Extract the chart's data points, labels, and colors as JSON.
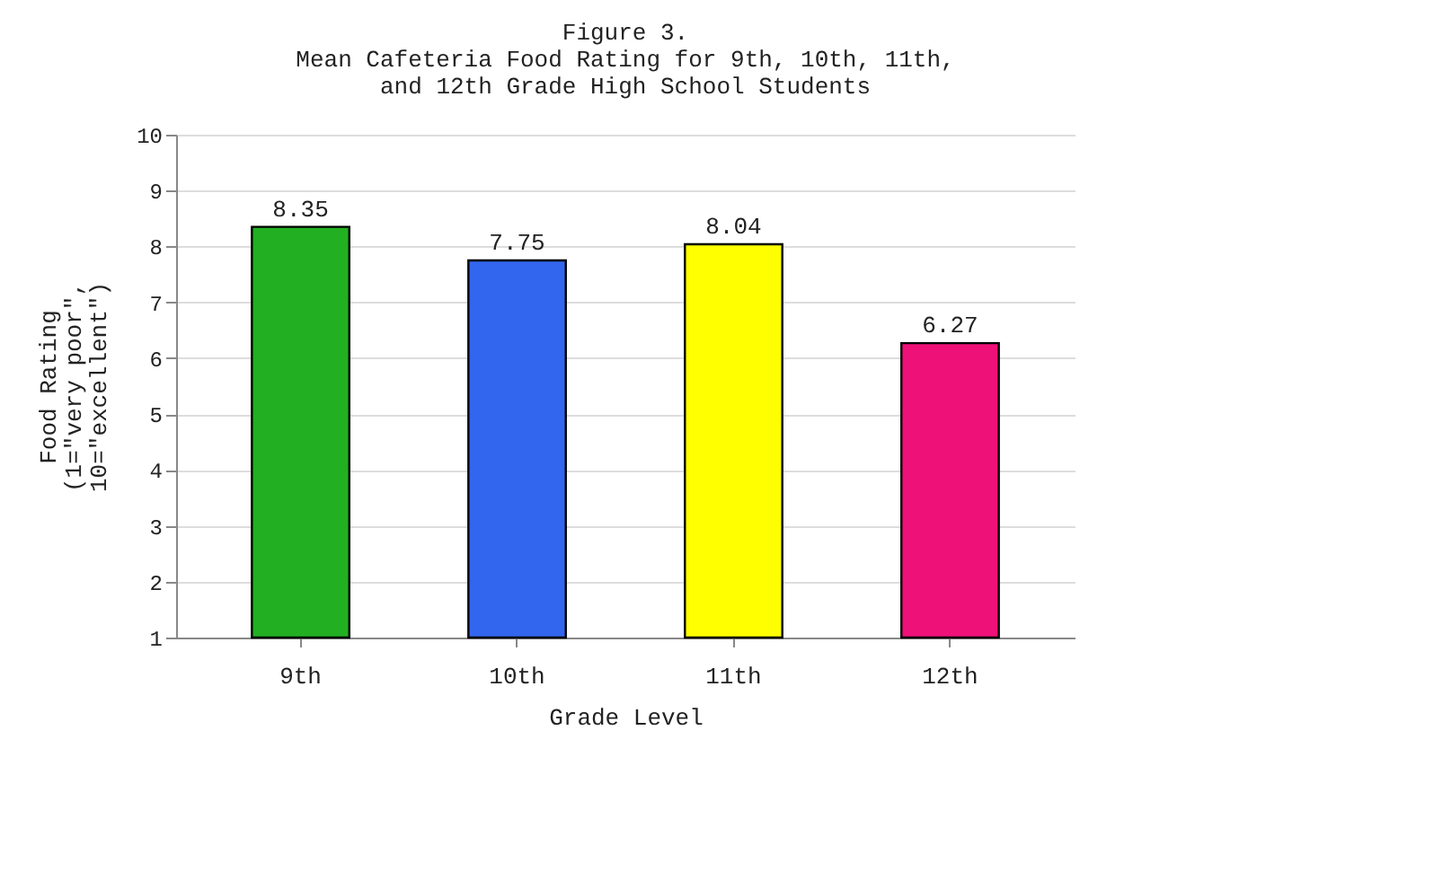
{
  "chart_data": {
    "type": "bar",
    "title": "Figure 3.\nMean Cafeteria Food Rating for 9th, 10th, 11th,\nand 12th Grade High School Students",
    "xlabel": "Grade Level",
    "ylabel": "Food Rating\n(1=\"very poor\",\n10=\"excellent\")",
    "categories": [
      "9th",
      "10th",
      "11th",
      "12th"
    ],
    "values": [
      8.35,
      7.75,
      8.04,
      6.27
    ],
    "colors": [
      "#22b022",
      "#3366ee",
      "#ffff00",
      "#ee1177"
    ],
    "ylim": [
      1,
      10
    ],
    "yticks": [
      1,
      2,
      3,
      4,
      5,
      6,
      7,
      8,
      9,
      10
    ],
    "grid": "y",
    "data_labels": true
  }
}
